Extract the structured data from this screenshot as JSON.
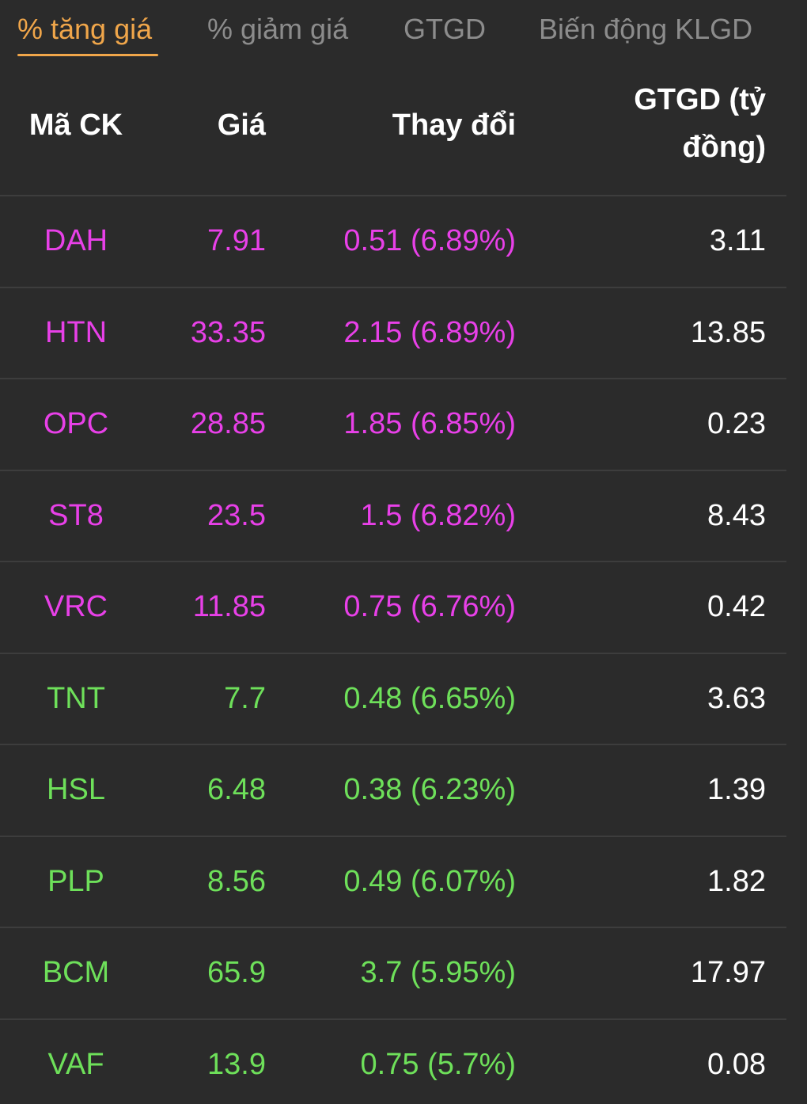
{
  "tabs": [
    {
      "label": "% tăng giá",
      "active": true
    },
    {
      "label": "% giảm giá",
      "active": false
    },
    {
      "label": "GTGD",
      "active": false
    },
    {
      "label": "Biến động KLGD",
      "active": false
    }
  ],
  "colors": {
    "background": "#2b2b2b",
    "active_tab": "#f0a64a",
    "inactive_tab": "#8c8c8c",
    "ceiling": "#e840e8",
    "increase": "#6ee05a",
    "value": "#ffffff"
  },
  "table": {
    "headers": {
      "code": "Mã CK",
      "price": "Giá",
      "change": "Thay đổi",
      "value_line1": "GTGD (tỷ",
      "value_line2": "đồng)"
    },
    "rows": [
      {
        "code": "DAH",
        "price": "7.91",
        "change": "0.51 (6.89%)",
        "value": "3.11",
        "status": "ceiling"
      },
      {
        "code": "HTN",
        "price": "33.35",
        "change": "2.15 (6.89%)",
        "value": "13.85",
        "status": "ceiling"
      },
      {
        "code": "OPC",
        "price": "28.85",
        "change": "1.85 (6.85%)",
        "value": "0.23",
        "status": "ceiling"
      },
      {
        "code": "ST8",
        "price": "23.5",
        "change": "1.5 (6.82%)",
        "value": "8.43",
        "status": "ceiling"
      },
      {
        "code": "VRC",
        "price": "11.85",
        "change": "0.75 (6.76%)",
        "value": "0.42",
        "status": "ceiling"
      },
      {
        "code": "TNT",
        "price": "7.7",
        "change": "0.48 (6.65%)",
        "value": "3.63",
        "status": "up"
      },
      {
        "code": "HSL",
        "price": "6.48",
        "change": "0.38 (6.23%)",
        "value": "1.39",
        "status": "up"
      },
      {
        "code": "PLP",
        "price": "8.56",
        "change": "0.49 (6.07%)",
        "value": "1.82",
        "status": "up"
      },
      {
        "code": "BCM",
        "price": "65.9",
        "change": "3.7 (5.95%)",
        "value": "17.97",
        "status": "up"
      },
      {
        "code": "VAF",
        "price": "13.9",
        "change": "0.75 (5.7%)",
        "value": "0.08",
        "status": "up"
      }
    ]
  }
}
